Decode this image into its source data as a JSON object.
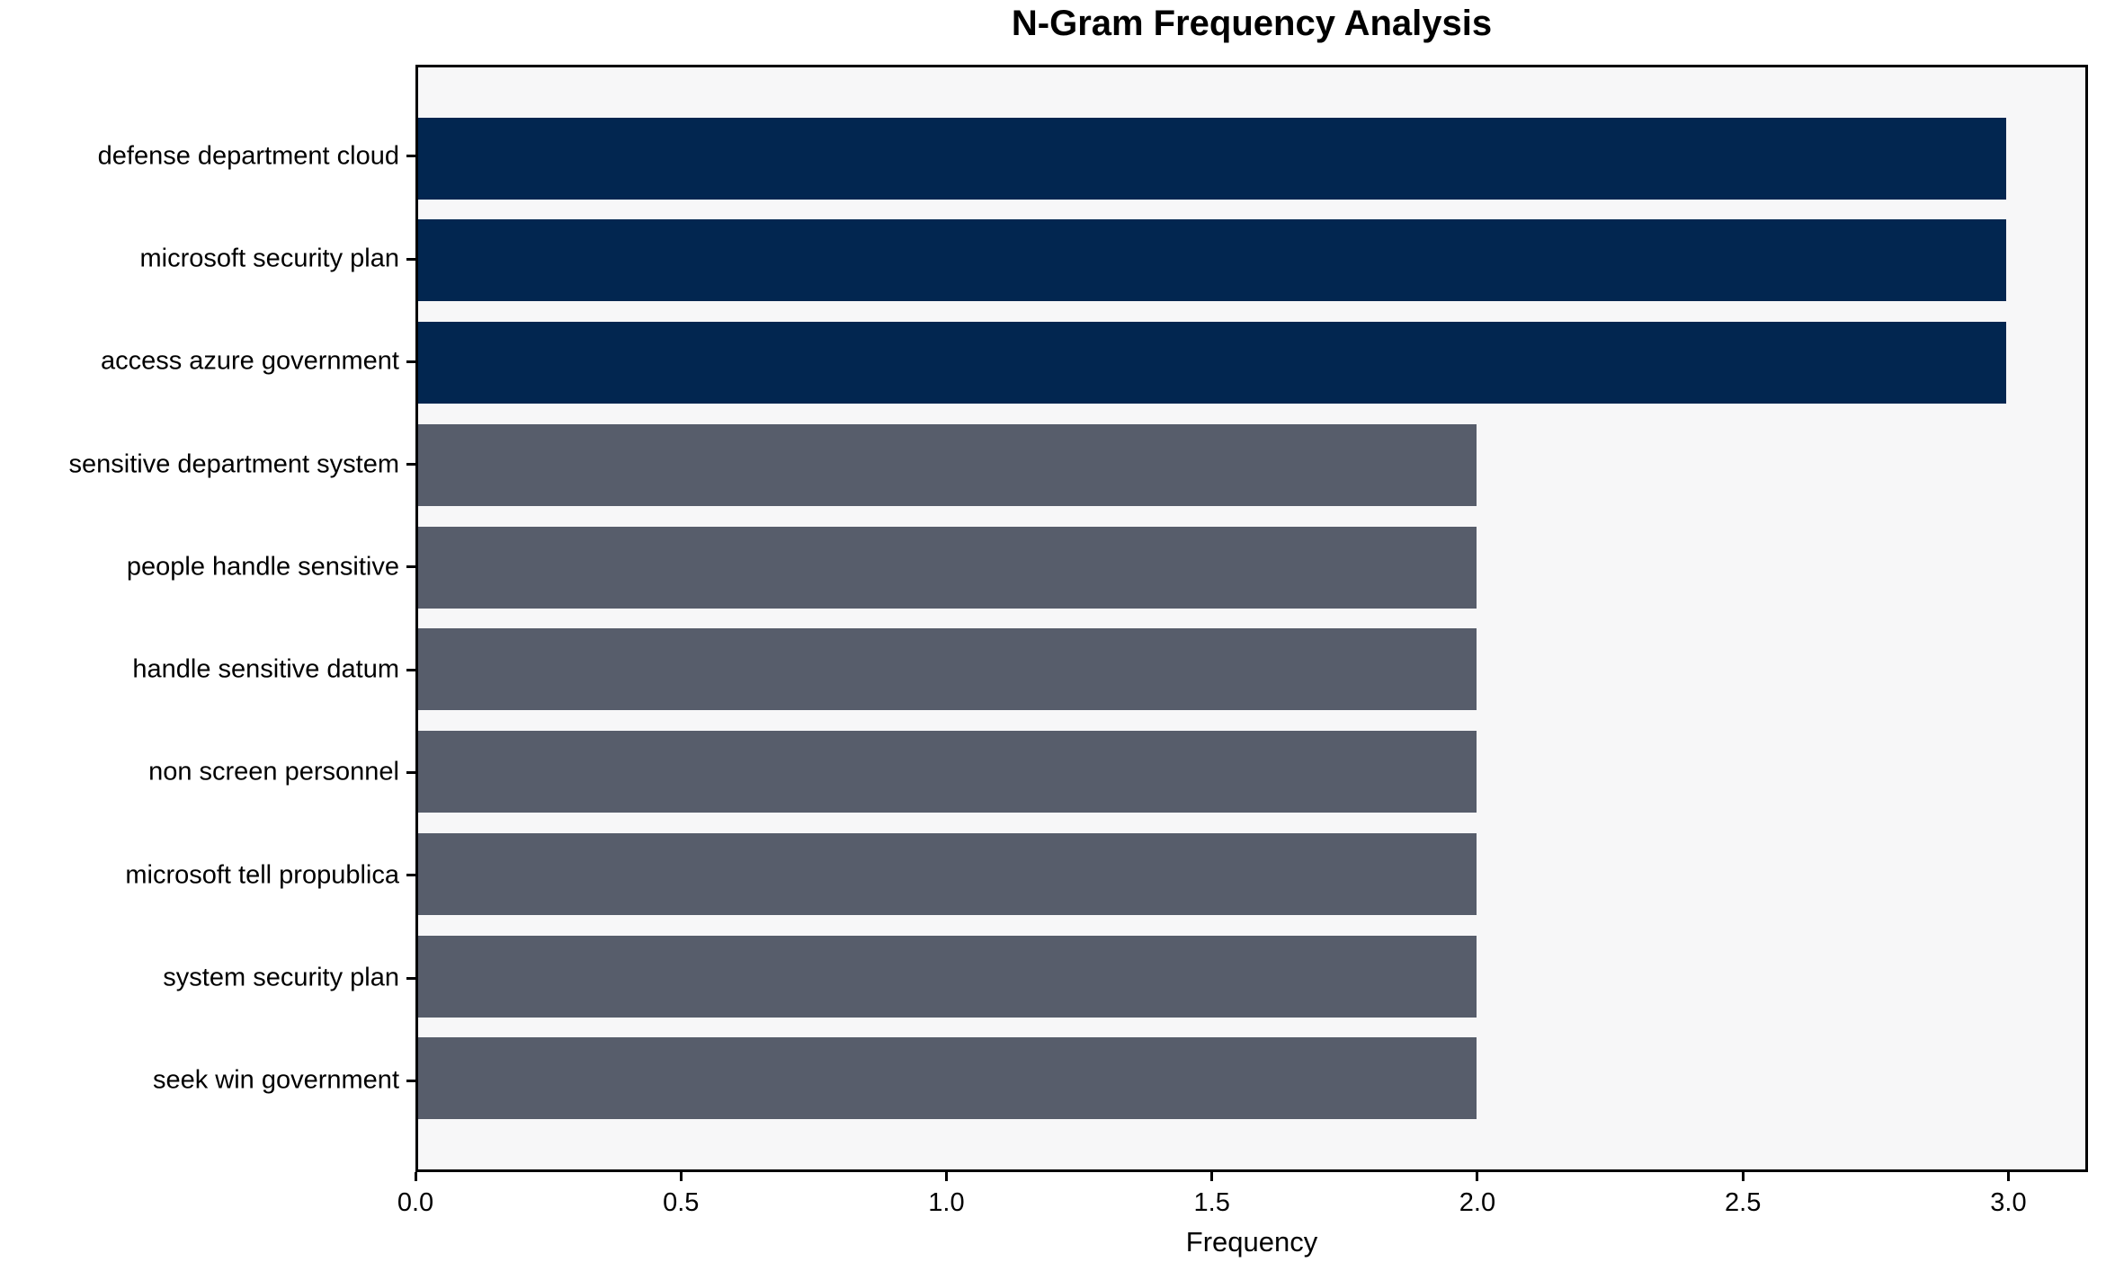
{
  "chart_data": {
    "type": "bar",
    "orientation": "horizontal",
    "title": "N-Gram Frequency Analysis",
    "xlabel": "Frequency",
    "ylabel": "",
    "categories": [
      "defense department cloud",
      "microsoft security plan",
      "access azure government",
      "sensitive department system",
      "people handle sensitive",
      "handle sensitive datum",
      "non screen personnel",
      "microsoft tell propublica",
      "system security plan",
      "seek win government"
    ],
    "values": [
      3,
      3,
      3,
      2,
      2,
      2,
      2,
      2,
      2,
      2
    ],
    "bar_colors": [
      "#022650",
      "#022650",
      "#022650",
      "#575d6b",
      "#575d6b",
      "#575d6b",
      "#575d6b",
      "#575d6b",
      "#575d6b",
      "#575d6b"
    ],
    "x_ticks": [
      0.0,
      0.5,
      1.0,
      1.5,
      2.0,
      2.5,
      3.0
    ],
    "x_tick_labels": [
      "0.0",
      "0.5",
      "1.0",
      "1.5",
      "2.0",
      "2.5",
      "3.0"
    ],
    "xlim": [
      0,
      3.15
    ],
    "grid": false,
    "legend": null,
    "bar_height_fraction": 0.8,
    "category_axis_margin": 0.49,
    "colors": {
      "highlight_bar": "#022650",
      "base_bar": "#575d6b",
      "plot_background": "#f7f7f8",
      "figure_background": "#ffffff",
      "spine": "#000000",
      "text": "#000000"
    }
  }
}
